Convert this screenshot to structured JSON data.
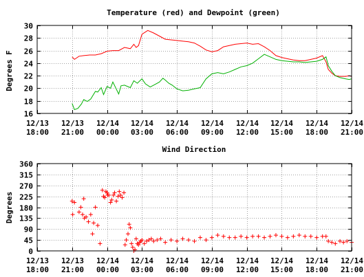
{
  "chart_data": [
    {
      "type": "line",
      "title": "Temperature (red) and Dewpoint (green)",
      "xlabel": "",
      "ylabel": "Degrees F",
      "ylim": [
        16,
        30
      ],
      "yticks": [
        16,
        18,
        20,
        22,
        24,
        26,
        28,
        30
      ],
      "xlim": [
        0,
        27
      ],
      "xticks": [
        {
          "x": 0,
          "line1": "12/13",
          "line2": "18:00"
        },
        {
          "x": 3,
          "line1": "12/13",
          "line2": "21:00"
        },
        {
          "x": 6,
          "line1": "12/14",
          "line2": "00:00"
        },
        {
          "x": 9,
          "line1": "12/14",
          "line2": "03:00"
        },
        {
          "x": 12,
          "line1": "12/14",
          "line2": "06:00"
        },
        {
          "x": 15,
          "line1": "12/14",
          "line2": "09:00"
        },
        {
          "x": 18,
          "line1": "12/14",
          "line2": "12:00"
        },
        {
          "x": 21,
          "line1": "12/14",
          "line2": "15:00"
        },
        {
          "x": 24,
          "line1": "12/14",
          "line2": "18:00"
        },
        {
          "x": 27,
          "line1": "12/14",
          "line2": "21:00"
        }
      ],
      "grid": true,
      "colors": {
        "temperature": "#ff0000",
        "dewpoint": "#00b000"
      },
      "series": [
        {
          "key": "temperature",
          "x": [
            3.0,
            3.2,
            3.6,
            4.0,
            4.5,
            5.0,
            5.5,
            6.0,
            6.5,
            7.0,
            7.5,
            8.0,
            8.3,
            8.5,
            8.7,
            9.0,
            9.5,
            10.0,
            10.5,
            11.0,
            11.5,
            12.0,
            12.5,
            13.0,
            13.5,
            14.0,
            14.5,
            15.0,
            15.5,
            16.0,
            16.5,
            17.0,
            17.5,
            18.0,
            18.5,
            19.0,
            19.5,
            20.0,
            20.5,
            21.0,
            21.5,
            22.0,
            22.5,
            23.0,
            23.5,
            24.0,
            24.5,
            24.8,
            25.0,
            25.3,
            25.6,
            26.0,
            26.5,
            26.8,
            27.0
          ],
          "y": [
            25.0,
            24.6,
            25.1,
            25.2,
            25.3,
            25.3,
            25.5,
            25.9,
            26.0,
            26.0,
            26.5,
            26.3,
            27.0,
            26.5,
            26.8,
            28.6,
            29.2,
            28.8,
            28.3,
            27.8,
            27.7,
            27.6,
            27.5,
            27.4,
            27.2,
            26.7,
            26.1,
            25.8,
            26.0,
            26.6,
            26.8,
            27.0,
            27.1,
            27.2,
            27.0,
            27.1,
            26.6,
            26.0,
            25.2,
            24.9,
            24.7,
            24.5,
            24.4,
            24.4,
            24.6,
            24.8,
            25.2,
            24.2,
            23.0,
            22.4,
            22.0,
            21.9,
            21.9,
            22.0,
            21.9
          ]
        },
        {
          "key": "dewpoint",
          "x": [
            3.0,
            3.2,
            3.5,
            3.8,
            4.0,
            4.3,
            4.6,
            5.0,
            5.2,
            5.5,
            5.7,
            6.0,
            6.3,
            6.5,
            7.0,
            7.2,
            7.5,
            8.0,
            8.3,
            8.6,
            9.0,
            9.3,
            9.7,
            10.0,
            10.5,
            10.8,
            11.0,
            11.3,
            11.6,
            12.0,
            12.5,
            13.0,
            13.5,
            14.0,
            14.5,
            15.0,
            15.5,
            16.0,
            16.5,
            17.0,
            17.5,
            18.0,
            18.5,
            19.0,
            19.5,
            20.0,
            20.5,
            21.0,
            21.5,
            22.0,
            22.5,
            23.0,
            23.5,
            24.0,
            24.5,
            24.8,
            25.0,
            25.3,
            25.6,
            26.0,
            26.5,
            26.8,
            27.0
          ],
          "y": [
            17.6,
            16.6,
            16.8,
            17.5,
            18.2,
            17.9,
            18.3,
            19.5,
            19.4,
            20.1,
            19.0,
            20.3,
            20.0,
            21.0,
            19.1,
            20.4,
            20.5,
            20.1,
            21.2,
            20.8,
            21.5,
            20.7,
            20.2,
            20.5,
            21.0,
            21.6,
            21.3,
            20.8,
            20.5,
            19.9,
            19.6,
            19.7,
            19.9,
            20.1,
            21.5,
            22.3,
            22.5,
            22.3,
            22.6,
            23.0,
            23.4,
            23.6,
            24.0,
            24.7,
            25.4,
            25.0,
            24.6,
            24.4,
            24.3,
            24.2,
            24.2,
            24.1,
            24.2,
            24.3,
            24.6,
            25.0,
            23.6,
            22.7,
            22.0,
            21.7,
            21.5,
            21.4,
            21.5
          ]
        }
      ]
    },
    {
      "type": "scatter",
      "title": "Wind Direction",
      "xlabel": "",
      "ylabel": "Degrees",
      "ylim": [
        0,
        360
      ],
      "yticks": [
        0,
        45,
        90,
        135,
        180,
        225,
        270,
        315,
        360
      ],
      "xlim": [
        0,
        27
      ],
      "xticks": [
        {
          "x": 0,
          "line1": "12/13",
          "line2": "18:00"
        },
        {
          "x": 3,
          "line1": "12/13",
          "line2": "21:00"
        },
        {
          "x": 6,
          "line1": "12/14",
          "line2": "00:00"
        },
        {
          "x": 9,
          "line1": "12/14",
          "line2": "03:00"
        },
        {
          "x": 12,
          "line1": "12/14",
          "line2": "06:00"
        },
        {
          "x": 15,
          "line1": "12/14",
          "line2": "09:00"
        },
        {
          "x": 18,
          "line1": "12/14",
          "line2": "12:00"
        },
        {
          "x": 21,
          "line1": "12/14",
          "line2": "15:00"
        },
        {
          "x": 24,
          "line1": "12/14",
          "line2": "18:00"
        },
        {
          "x": 27,
          "line1": "12/14",
          "line2": "21:00"
        }
      ],
      "grid": true,
      "colors": {
        "points": "#ff0000"
      },
      "series": [
        {
          "key": "wind",
          "x": [
            3.0,
            3.05,
            3.2,
            3.6,
            3.75,
            3.9,
            4.0,
            4.05,
            4.2,
            4.4,
            4.6,
            4.75,
            4.85,
            5.0,
            5.2,
            5.4,
            5.6,
            5.7,
            5.8,
            5.9,
            6.0,
            6.05,
            6.15,
            6.3,
            6.4,
            6.55,
            6.65,
            6.8,
            6.95,
            7.05,
            7.15,
            7.3,
            7.45,
            7.55,
            7.65,
            7.8,
            7.9,
            8.0,
            8.1,
            8.2,
            8.3,
            8.4,
            8.5,
            8.6,
            8.7,
            8.8,
            8.9,
            9.0,
            9.2,
            9.4,
            9.6,
            9.8,
            10.0,
            10.3,
            10.6,
            11.0,
            11.5,
            12.0,
            12.5,
            13.0,
            13.5,
            14.0,
            14.5,
            15.0,
            15.5,
            16.0,
            16.5,
            17.0,
            17.5,
            18.0,
            18.5,
            19.0,
            19.5,
            20.0,
            20.5,
            21.0,
            21.5,
            22.0,
            22.5,
            23.0,
            23.5,
            24.0,
            24.5,
            24.8,
            25.0,
            25.3,
            25.6,
            26.0,
            26.3,
            26.6,
            27.0
          ],
          "y": [
            205,
            150,
            200,
            160,
            180,
            150,
            215,
            135,
            140,
            120,
            150,
            70,
            115,
            180,
            105,
            30,
            250,
            225,
            220,
            245,
            240,
            230,
            230,
            200,
            210,
            230,
            240,
            205,
            225,
            245,
            230,
            220,
            240,
            25,
            45,
            70,
            110,
            95,
            30,
            15,
            0,
            5,
            50,
            30,
            25,
            35,
            40,
            45,
            30,
            40,
            45,
            50,
            40,
            45,
            50,
            35,
            45,
            40,
            50,
            45,
            40,
            55,
            45,
            55,
            65,
            60,
            55,
            55,
            60,
            55,
            60,
            60,
            55,
            60,
            65,
            60,
            55,
            60,
            65,
            60,
            60,
            55,
            60,
            60,
            40,
            35,
            30,
            40,
            35,
            40,
            35
          ]
        }
      ]
    }
  ]
}
